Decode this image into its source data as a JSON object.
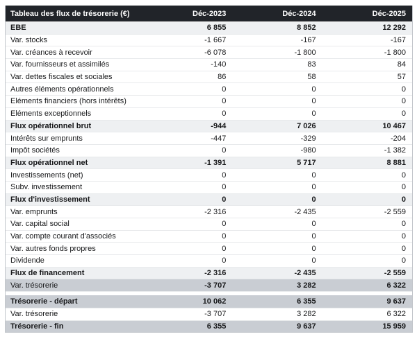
{
  "title": "Tableau des flux de trésorerie (€)",
  "columns": [
    "Déc-2023",
    "Déc-2024",
    "Déc-2025"
  ],
  "colors": {
    "header_bg": "#212429",
    "header_text": "#ffffff",
    "subtotal_bg": "#eef0f2",
    "highlight_bg": "#c9cdd3",
    "row_border": "#e8eaec",
    "outer_border": "#c2c6cb",
    "text": "#17181a"
  },
  "rows": [
    {
      "label": "EBE",
      "values": [
        "6 855",
        "8 852",
        "12 292"
      ],
      "style": "subtotal"
    },
    {
      "label": "Var. stocks",
      "values": [
        "-1 667",
        "-167",
        "-167"
      ],
      "style": "normal"
    },
    {
      "label": "Var. créances à recevoir",
      "values": [
        "-6 078",
        "-1 800",
        "-1 800"
      ],
      "style": "normal"
    },
    {
      "label": "Var. fournisseurs et assimilés",
      "values": [
        "-140",
        "83",
        "84"
      ],
      "style": "normal"
    },
    {
      "label": "Var. dettes fiscales et sociales",
      "values": [
        "86",
        "58",
        "57"
      ],
      "style": "normal"
    },
    {
      "label": "Autres éléments opérationnels",
      "values": [
        "0",
        "0",
        "0"
      ],
      "style": "normal"
    },
    {
      "label": "Eléments financiers (hors intérêts)",
      "values": [
        "0",
        "0",
        "0"
      ],
      "style": "normal"
    },
    {
      "label": "Eléments exceptionnels",
      "values": [
        "0",
        "0",
        "0"
      ],
      "style": "normal"
    },
    {
      "label": "Flux opérationnel brut",
      "values": [
        "-944",
        "7 026",
        "10 467"
      ],
      "style": "subtotal"
    },
    {
      "label": "Intérêts sur emprunts",
      "values": [
        "-447",
        "-329",
        "-204"
      ],
      "style": "normal"
    },
    {
      "label": "Impôt sociétés",
      "values": [
        "0",
        "-980",
        "-1 382"
      ],
      "style": "normal"
    },
    {
      "label": "Flux opérationnel net",
      "values": [
        "-1 391",
        "5 717",
        "8 881"
      ],
      "style": "subtotal"
    },
    {
      "label": "Investissements (net)",
      "values": [
        "0",
        "0",
        "0"
      ],
      "style": "normal"
    },
    {
      "label": "Subv. investissement",
      "values": [
        "0",
        "0",
        "0"
      ],
      "style": "normal"
    },
    {
      "label": "Flux d'investissement",
      "values": [
        "0",
        "0",
        "0"
      ],
      "style": "subtotal"
    },
    {
      "label": "Var. emprunts",
      "values": [
        "-2 316",
        "-2 435",
        "-2 559"
      ],
      "style": "normal"
    },
    {
      "label": "Var. capital social",
      "values": [
        "0",
        "0",
        "0"
      ],
      "style": "normal"
    },
    {
      "label": "Var. compte courant d'associés",
      "values": [
        "0",
        "0",
        "0"
      ],
      "style": "normal"
    },
    {
      "label": "Var. autres fonds propres",
      "values": [
        "0",
        "0",
        "0"
      ],
      "style": "normal"
    },
    {
      "label": "Dividende",
      "values": [
        "0",
        "0",
        "0"
      ],
      "style": "normal"
    },
    {
      "label": "Flux de financement",
      "values": [
        "-2 316",
        "-2 435",
        "-2 559"
      ],
      "style": "subtotal"
    },
    {
      "label": "Var. trésorerie",
      "values": [
        "-3 707",
        "3 282",
        "6 322"
      ],
      "style": "highlight-valbold"
    }
  ],
  "summary_rows": [
    {
      "label": "Trésorerie - départ",
      "values": [
        "10 062",
        "6 355",
        "9 637"
      ],
      "style": "highlight-bold"
    },
    {
      "label": "Var. trésorerie",
      "values": [
        "-3 707",
        "3 282",
        "6 322"
      ],
      "style": "normal"
    },
    {
      "label": "Trésorerie - fin",
      "values": [
        "6 355",
        "9 637",
        "15 959"
      ],
      "style": "highlight-bold"
    }
  ]
}
